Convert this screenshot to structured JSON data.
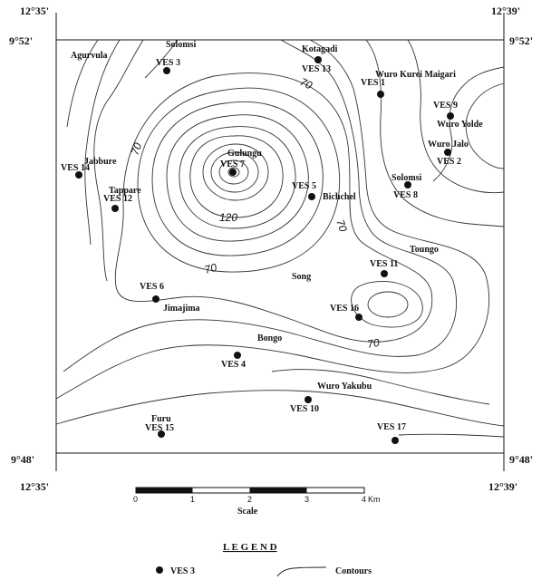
{
  "corners": {
    "top_left_lon": "12°35'",
    "top_right_lon": "12°39'",
    "bottom_left_lon": "12°35'",
    "bottom_right_lon": "12°39'",
    "top_left_lat": "9°52'",
    "top_right_lat": "9°52'",
    "bottom_left_lat": "9°48'",
    "bottom_right_lat": "9°48'"
  },
  "places": {
    "agurvula": "Agurvula",
    "solomsi_n": "Solomsi",
    "kotagadi": "Kotagadi",
    "wuro_kurei": "Wuro Kurei Maigari",
    "wuro_yolde": "Wuro Yolde",
    "wuro_jalo": "Wuro Jalo",
    "gulungu": "Gulungu",
    "jabbure": "Jabbure",
    "tappare": "Tappare",
    "bichchel": "Bichchel",
    "solomsi_e": "Solomsi",
    "toungo": "Toungo",
    "song": "Song",
    "jimajima": "Jimajima",
    "bongo": "Bongo",
    "wuro_yakubu": "Wuro Yakubu",
    "furu": "Furu"
  },
  "ves": {
    "v1": "VES 1",
    "v2": "VES 2",
    "v3": "VES 3",
    "v4": "VES 4",
    "v5": "VES 5",
    "v6": "VES 6",
    "v7": "VES 7",
    "v8": "VES 8",
    "v9": "VES 9",
    "v10": "VES 10",
    "v11": "VES 11",
    "v12": "VES 12",
    "v13": "VES 13",
    "v14": "VES 14",
    "v15": "VES 15",
    "v16": "VES 16",
    "v17": "VES 17"
  },
  "contour_labels": {
    "c1": "70",
    "c2": "70",
    "c3": "120",
    "c4": "70",
    "c5": "70",
    "c6": "70"
  },
  "scale": {
    "ticks": [
      "0",
      "1",
      "2",
      "3",
      "4"
    ],
    "unit": "Km",
    "title": "Scale"
  },
  "legend": {
    "title": "L E G E N D",
    "point_label": "VES 3",
    "line_label": "Contours"
  }
}
